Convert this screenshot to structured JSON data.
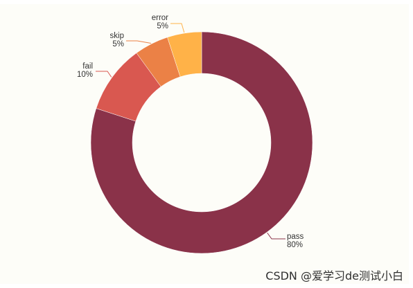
{
  "chart_data": {
    "type": "pie",
    "variant": "donut",
    "title": "",
    "categories": [
      "pass",
      "fail",
      "skip",
      "error"
    ],
    "values": [
      80,
      10,
      5,
      5
    ],
    "value_labels": [
      "80%",
      "10%",
      "5%",
      "5%"
    ],
    "colors": [
      "#8a3249",
      "#d95850",
      "#eb8146",
      "#ffb248"
    ],
    "legend": "none",
    "label_style": "outside with leader lines"
  },
  "watermark": {
    "text": "CSDN @爱学习de测试小白"
  },
  "colors": {
    "background": "#fdfdf8",
    "label_text": "#333333"
  }
}
